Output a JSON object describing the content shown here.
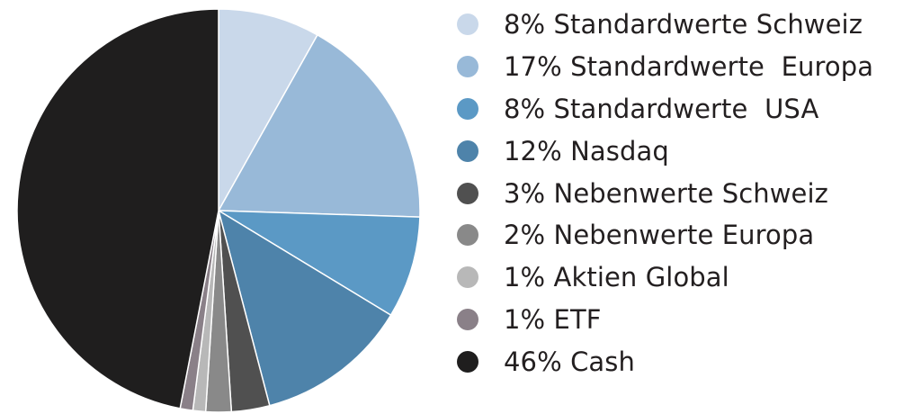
{
  "chart_data": {
    "type": "pie",
    "start": "12 o'clock",
    "direction": "clockwise",
    "slices": [
      {
        "label": "8% Standardwerte Schweiz",
        "value": 8,
        "color": "#c9d8ea"
      },
      {
        "label": "17% Standardwerte  Europa",
        "value": 17,
        "color": "#98b9d8"
      },
      {
        "label": "8% Standardwerte  USA",
        "value": 8,
        "color": "#5b99c5"
      },
      {
        "label": "12% Nasdaq",
        "value": 12,
        "color": "#4e83aa"
      },
      {
        "label": "3% Nebenwerte Schweiz",
        "value": 3,
        "color": "#505050"
      },
      {
        "label": "2% Nebenwerte Europa",
        "value": 2,
        "color": "#898989"
      },
      {
        "label": "1% Aktien Global",
        "value": 1,
        "color": "#b8b8b8"
      },
      {
        "label": "1% ETF",
        "value": 1,
        "color": "#8a8088"
      },
      {
        "label": "46% Cash",
        "value": 46,
        "color": "#1f1e1e"
      }
    ],
    "legend": "right"
  }
}
